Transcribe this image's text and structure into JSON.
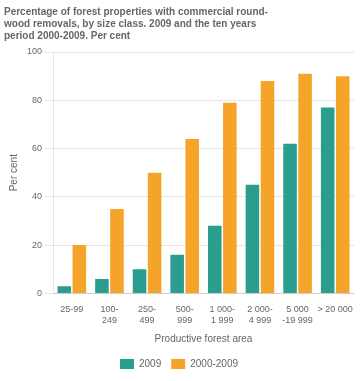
{
  "chart_data": {
    "type": "bar",
    "title": "Percentage of forest properties with commercial round-\nwood removals, by size class. 2009 and the ten years\nperiod 2000-2009. Per cent",
    "x_label": "Productive forest area",
    "y_label": "Per cent",
    "categories": [
      "25-99",
      "100-\n249",
      "250-\n499",
      "500-\n999",
      "1 000-\n1 999",
      "2 000-\n4 999",
      "5 000\n-19 999",
      "> 20 000"
    ],
    "series": [
      {
        "name": "2009",
        "color": "#2a9d8f",
        "values": [
          3,
          6,
          10,
          16,
          28,
          45,
          62,
          77
        ]
      },
      {
        "name": "2000-2009",
        "color": "#f4a429",
        "values": [
          20,
          35,
          50,
          64,
          79,
          88,
          91,
          90
        ]
      }
    ],
    "ylim": [
      0,
      100
    ],
    "yticks": [
      0,
      20,
      40,
      60,
      80,
      100
    ],
    "grid": true,
    "legend": "bottom"
  }
}
